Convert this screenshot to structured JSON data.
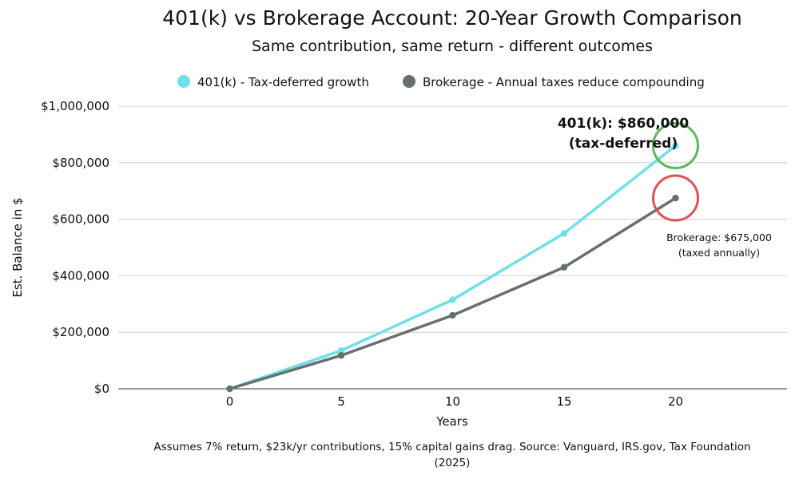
{
  "chart_data": {
    "type": "line",
    "title": "401(k) vs Brokerage Account: 20-Year Growth Comparison",
    "subtitle": "Same contribution, same return - different outcomes",
    "xlabel": "Years",
    "ylabel": "Est. Balance in $",
    "x": [
      0,
      5,
      10,
      15,
      20
    ],
    "xlim": [
      -5,
      25
    ],
    "ylim": [
      0,
      1000000
    ],
    "y_ticks": [
      0,
      200000,
      400000,
      600000,
      800000,
      1000000
    ],
    "y_tick_labels": [
      "$0",
      "$200,000",
      "$400,000",
      "$600,000",
      "$800,000",
      "$1,000,000"
    ],
    "x_tick_labels": [
      "0",
      "5",
      "10",
      "15",
      "20"
    ],
    "grid": true,
    "legend_position": "top",
    "series": [
      {
        "name": "401(k) - Tax-deferred growth",
        "color": "#6ee0e6",
        "values": [
          0,
          135000,
          315000,
          550000,
          860000
        ]
      },
      {
        "name": "Brokerage - Annual taxes reduce compounding",
        "color": "#66706e",
        "values": [
          0,
          118000,
          260000,
          430000,
          675000
        ]
      }
    ],
    "annotations": [
      {
        "lines": [
          "401(k): $860,000",
          "(tax-deferred)"
        ],
        "style": "bold",
        "series_index": 0,
        "point_index": 4,
        "circle_color": "#5cb85c"
      },
      {
        "lines": [
          "Brokerage: $675,000",
          "(taxed annually)"
        ],
        "style": "small",
        "series_index": 1,
        "point_index": 4,
        "circle_color": "#e05055"
      }
    ],
    "footnote": [
      "Assumes 7% return, $23k/yr contributions, 15% capital gains drag. Source: Vanguard, IRS.gov, Tax Foundation",
      "(2025)"
    ]
  }
}
